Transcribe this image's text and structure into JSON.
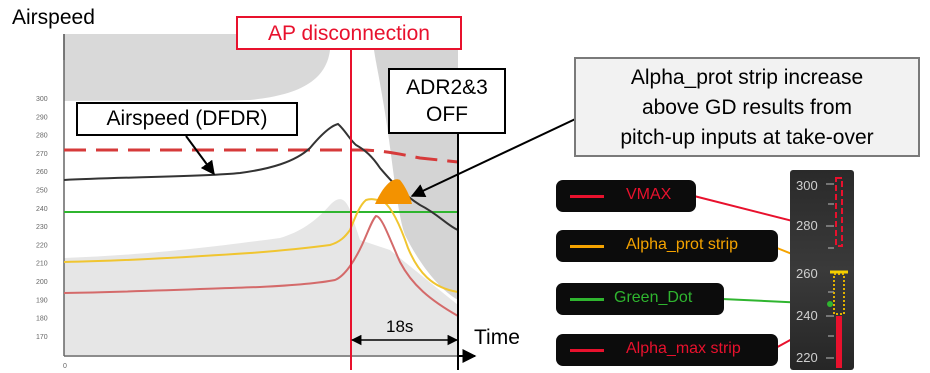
{
  "axis": {
    "y_title": "Airspeed",
    "x_title": "Time",
    "y_ticks": [
      "300",
      "290",
      "280",
      "270",
      "260",
      "250",
      "240",
      "230",
      "220",
      "210",
      "200",
      "190",
      "180",
      "170"
    ],
    "x_tick": "0"
  },
  "annotations": {
    "ap_disconnection": "AP disconnection",
    "adr_line1": "ADR2&3",
    "adr_line2": "OFF",
    "dfdr_label": "Airspeed (DFDR)",
    "alpha_line1": "Alpha_prot strip increase",
    "alpha_line2": "above GD results from",
    "alpha_line3": "pitch-up inputs at take-over",
    "interval": "18s"
  },
  "legend": {
    "vmax": "VMAX",
    "alpha_prot": "Alpha_prot strip",
    "green_dot": "Green_Dot",
    "alpha_max": "Alpha_max strip"
  },
  "tape": {
    "ticks": [
      "300",
      "280",
      "260",
      "240",
      "220"
    ]
  },
  "colors": {
    "vmax": "#e8112d",
    "alpha_prot": "#f5a300",
    "green_dot": "#2fb52f",
    "alpha_max": "#e8112d",
    "airspeed": "#2b2b2b"
  }
}
